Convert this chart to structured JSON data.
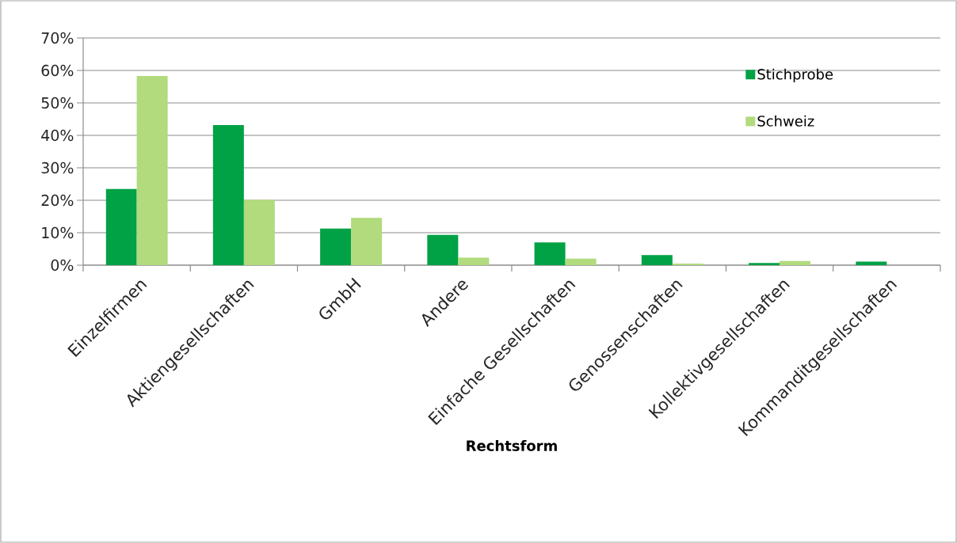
{
  "chart_data": {
    "type": "bar",
    "xlabel": "Rechtsform",
    "categories": [
      "Einzelfirmen",
      "Aktiengesellschaften",
      "GmbH",
      "Andere",
      "Einfache Gesellschaften",
      "Genossenschaften",
      "Kollektivgesellschaften",
      "Kommanditgesellschaften"
    ],
    "series": [
      {
        "name": "Stichprobe",
        "color": "#00a245",
        "values": [
          23.5,
          43.2,
          11.3,
          9.3,
          7.0,
          3.1,
          0.7,
          1.1
        ]
      },
      {
        "name": "Schweiz",
        "color": "#b1db7c",
        "values": [
          58.3,
          20.1,
          14.6,
          2.3,
          2.0,
          0.5,
          1.3,
          0
        ]
      }
    ],
    "ylim": [
      0,
      70
    ],
    "yticks": [
      {
        "value": 0,
        "label": "0%"
      },
      {
        "value": 10,
        "label": "10%"
      },
      {
        "value": 20,
        "label": "20%"
      },
      {
        "value": 30,
        "label": "30%"
      },
      {
        "value": 40,
        "label": "40%"
      },
      {
        "value": 50,
        "label": "50%"
      },
      {
        "value": 60,
        "label": "60%"
      },
      {
        "value": 70,
        "label": "70%"
      }
    ],
    "grid": "y",
    "legend": "top right"
  }
}
